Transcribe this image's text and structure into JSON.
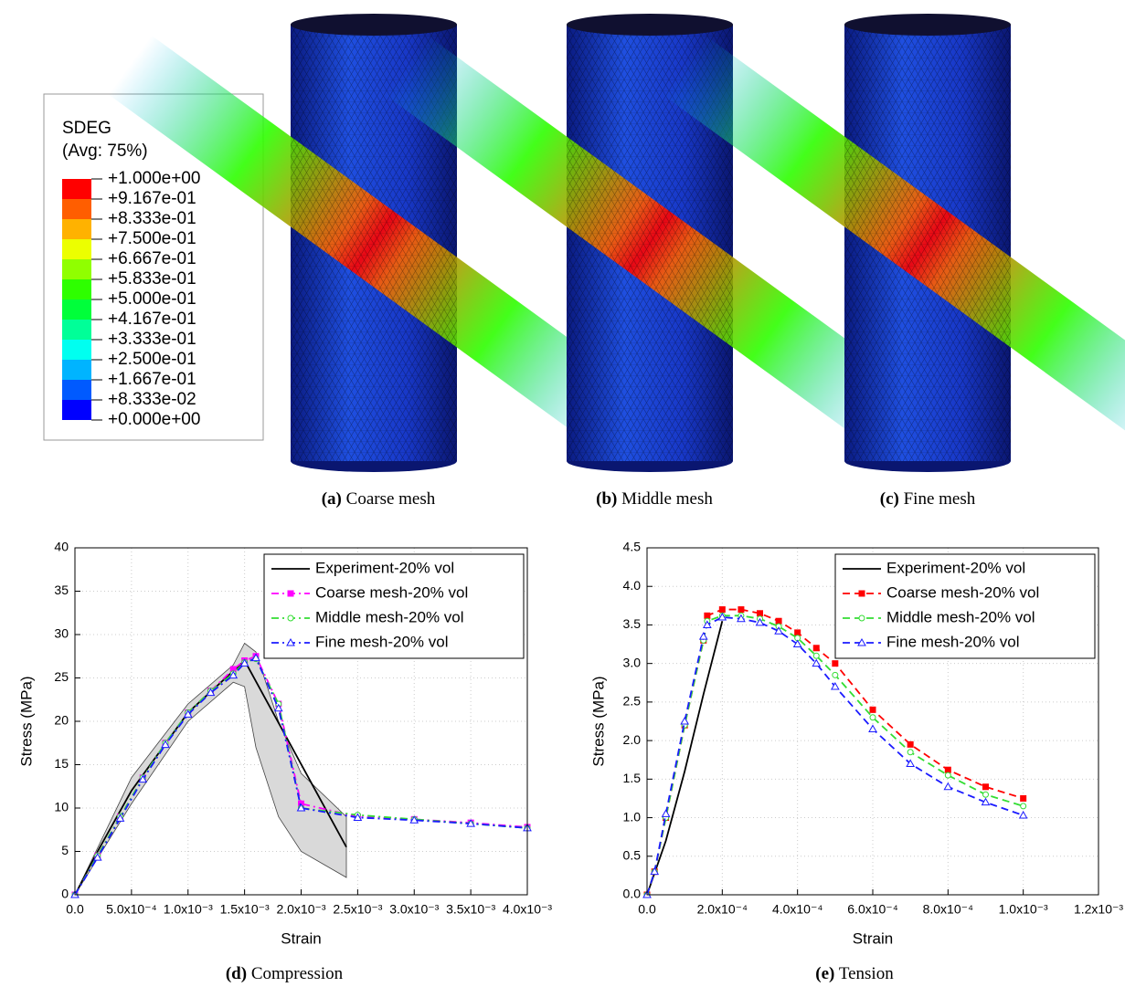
{
  "contour_legend": {
    "title": "SDEG",
    "subtitle": "(Avg: 75%)",
    "labels": [
      "+1.000e+00",
      "+9.167e-01",
      "+8.333e-01",
      "+7.500e-01",
      "+6.667e-01",
      "+5.833e-01",
      "+5.000e-01",
      "+4.167e-01",
      "+3.333e-01",
      "+2.500e-01",
      "+1.667e-01",
      "+8.333e-02",
      "+0.000e+00"
    ],
    "colors": [
      "#ff0000",
      "#ff5e00",
      "#ffb200",
      "#ecff00",
      "#90ff00",
      "#2eff00",
      "#00ff3a",
      "#00ff98",
      "#00fff0",
      "#00b4ff",
      "#005aff",
      "#0000ff"
    ]
  },
  "captions": [
    {
      "label": "(a)",
      "text": "Coarse mesh"
    },
    {
      "label": "(b)",
      "text": "Middle mesh"
    },
    {
      "label": "(c)",
      "text": "Fine mesh"
    },
    {
      "label": "(d)",
      "text": "Compression"
    },
    {
      "label": "(e)",
      "text": "Tension"
    }
  ],
  "chart_data": [
    {
      "type": "line",
      "x_label": "Strain",
      "y_label": "Stress (MPa)",
      "grid": true,
      "legend": "upper right",
      "xlim": [
        0,
        0.004
      ],
      "ylim": [
        0,
        40
      ],
      "xticks": [
        {
          "value": 0,
          "label": "0.0"
        },
        {
          "value": 0.0005,
          "label": "5.0x10⁻⁴"
        },
        {
          "value": 0.001,
          "label": "1.0x10⁻³"
        },
        {
          "value": 0.0015,
          "label": "1.5x10⁻³"
        },
        {
          "value": 0.002,
          "label": "2.0x10⁻³"
        },
        {
          "value": 0.0025,
          "label": "2.5x10⁻³"
        },
        {
          "value": 0.003,
          "label": "3.0x10⁻³"
        },
        {
          "value": 0.0035,
          "label": "3.5x10⁻³"
        },
        {
          "value": 0.004,
          "label": "4.0x10⁻³"
        }
      ],
      "yticks": [
        0,
        5,
        10,
        15,
        20,
        25,
        30,
        35,
        40
      ],
      "band": {
        "color": "#d9d9d9",
        "x": [
          0,
          0.0005,
          0.001,
          0.0014,
          0.0015,
          0.0016,
          0.0018,
          0.002,
          0.0024
        ],
        "upper": [
          0,
          13.5,
          22,
          26.5,
          29,
          28,
          20,
          14,
          9
        ],
        "lower": [
          0,
          10.5,
          20,
          24.5,
          24,
          17,
          9,
          5,
          2
        ]
      },
      "series": [
        {
          "name": "Experiment-20% vol",
          "color": "#000000",
          "line_style": "solid",
          "marker": "none",
          "x": [
            0,
            0.0002,
            0.0005,
            0.001,
            0.0015,
            0.0024
          ],
          "values": [
            0,
            5,
            12,
            21,
            27,
            5.5
          ]
        },
        {
          "name": "Coarse mesh-20% vol",
          "color": "#ff00ff",
          "line_style": "dashdot",
          "marker": "square",
          "x": [
            0,
            0.0002,
            0.0004,
            0.0006,
            0.0008,
            0.001,
            0.0012,
            0.0014,
            0.0015,
            0.0016,
            0.0018,
            0.002,
            0.0025,
            0.003,
            0.0035,
            0.004
          ],
          "values": [
            0,
            4.5,
            9,
            13.5,
            17.5,
            21,
            23.5,
            26,
            27,
            27.5,
            22,
            10.5,
            9,
            8.7,
            8.3,
            7.8
          ]
        },
        {
          "name": "Middle mesh-20% vol",
          "color": "#33dd33",
          "line_style": "dashdot",
          "marker": "circle",
          "x": [
            0,
            0.0002,
            0.0004,
            0.0006,
            0.0008,
            0.001,
            0.0012,
            0.0014,
            0.0015,
            0.0016,
            0.0018,
            0.002,
            0.0025,
            0.003,
            0.0035,
            0.004
          ],
          "values": [
            0,
            4.5,
            9,
            13.5,
            17.5,
            21,
            23.5,
            25.5,
            26.8,
            27.2,
            22,
            10,
            9.2,
            8.7,
            8.2,
            7.7
          ]
        },
        {
          "name": "Fine mesh-20% vol",
          "color": "#1a1aff",
          "line_style": "dashdot",
          "marker": "triangle",
          "x": [
            0,
            0.0002,
            0.0004,
            0.0006,
            0.0008,
            0.001,
            0.0012,
            0.0014,
            0.0015,
            0.0016,
            0.0018,
            0.002,
            0.0025,
            0.003,
            0.0035,
            0.004
          ],
          "values": [
            0,
            4.3,
            8.8,
            13.3,
            17.3,
            20.8,
            23.3,
            25.3,
            26.7,
            27.3,
            21.5,
            10,
            8.9,
            8.6,
            8.2,
            7.7
          ]
        }
      ]
    },
    {
      "type": "line",
      "x_label": "Strain",
      "y_label": "Stress (MPa)",
      "grid": true,
      "legend": "upper right",
      "xlim": [
        0,
        0.0012
      ],
      "ylim": [
        0,
        4.5
      ],
      "xticks": [
        {
          "value": 0,
          "label": "0.0"
        },
        {
          "value": 0.0002,
          "label": "2.0x10⁻⁴"
        },
        {
          "value": 0.0004,
          "label": "4.0x10⁻⁴"
        },
        {
          "value": 0.0006,
          "label": "6.0x10⁻⁴"
        },
        {
          "value": 0.0008,
          "label": "8.0x10⁻⁴"
        },
        {
          "value": 0.001,
          "label": "1.0x10⁻³"
        },
        {
          "value": 0.0012,
          "label": "1.2x10⁻³"
        }
      ],
      "yticks": [
        {
          "value": 0,
          "label": "0.0"
        },
        0.5,
        {
          "value": 1,
          "label": "1.0"
        },
        1.5,
        {
          "value": 2,
          "label": "2.0"
        },
        2.5,
        {
          "value": 3,
          "label": "3.0"
        },
        3.5,
        {
          "value": 4,
          "label": "4.0"
        },
        4.5
      ],
      "series": [
        {
          "name": "Experiment-20% vol",
          "color": "#000000",
          "line_style": "solid",
          "marker": "none",
          "x": [
            0,
            5e-05,
            0.0001,
            0.00015,
            0.0002
          ],
          "values": [
            0,
            0.7,
            1.6,
            2.6,
            3.55
          ]
        },
        {
          "name": "Coarse mesh-20% vol",
          "color": "#ff0000",
          "line_style": "dash",
          "marker": "square",
          "x": [
            0,
            2e-05,
            5e-05,
            0.0001,
            0.00015,
            0.00016,
            0.0002,
            0.00025,
            0.0003,
            0.00035,
            0.0004,
            0.00045,
            0.0005,
            0.0006,
            0.0007,
            0.0008,
            0.0009,
            0.001
          ],
          "values": [
            0,
            0.3,
            1,
            2.2,
            3.3,
            3.62,
            3.7,
            3.7,
            3.65,
            3.55,
            3.4,
            3.2,
            3,
            2.4,
            1.95,
            1.62,
            1.4,
            1.25
          ]
        },
        {
          "name": "Middle mesh-20% vol",
          "color": "#33dd33",
          "line_style": "dash",
          "marker": "circle",
          "x": [
            0,
            2e-05,
            5e-05,
            0.0001,
            0.00015,
            0.00016,
            0.0002,
            0.00025,
            0.0003,
            0.00035,
            0.0004,
            0.00045,
            0.0005,
            0.0006,
            0.0007,
            0.0008,
            0.0009,
            0.001
          ],
          "values": [
            0,
            0.3,
            1,
            2.2,
            3.3,
            3.55,
            3.62,
            3.62,
            3.58,
            3.48,
            3.33,
            3.1,
            2.85,
            2.3,
            1.85,
            1.55,
            1.3,
            1.15
          ]
        },
        {
          "name": "Fine mesh-20% vol",
          "color": "#1a1aff",
          "line_style": "dash",
          "marker": "triangle",
          "x": [
            0,
            2e-05,
            5e-05,
            0.0001,
            0.00015,
            0.00016,
            0.0002,
            0.00025,
            0.0003,
            0.00035,
            0.0004,
            0.00045,
            0.0005,
            0.0006,
            0.0007,
            0.0008,
            0.0009,
            0.001
          ],
          "values": [
            0,
            0.3,
            1.05,
            2.25,
            3.35,
            3.5,
            3.6,
            3.58,
            3.53,
            3.42,
            3.25,
            3,
            2.7,
            2.15,
            1.7,
            1.4,
            1.2,
            1.03
          ]
        }
      ]
    }
  ]
}
